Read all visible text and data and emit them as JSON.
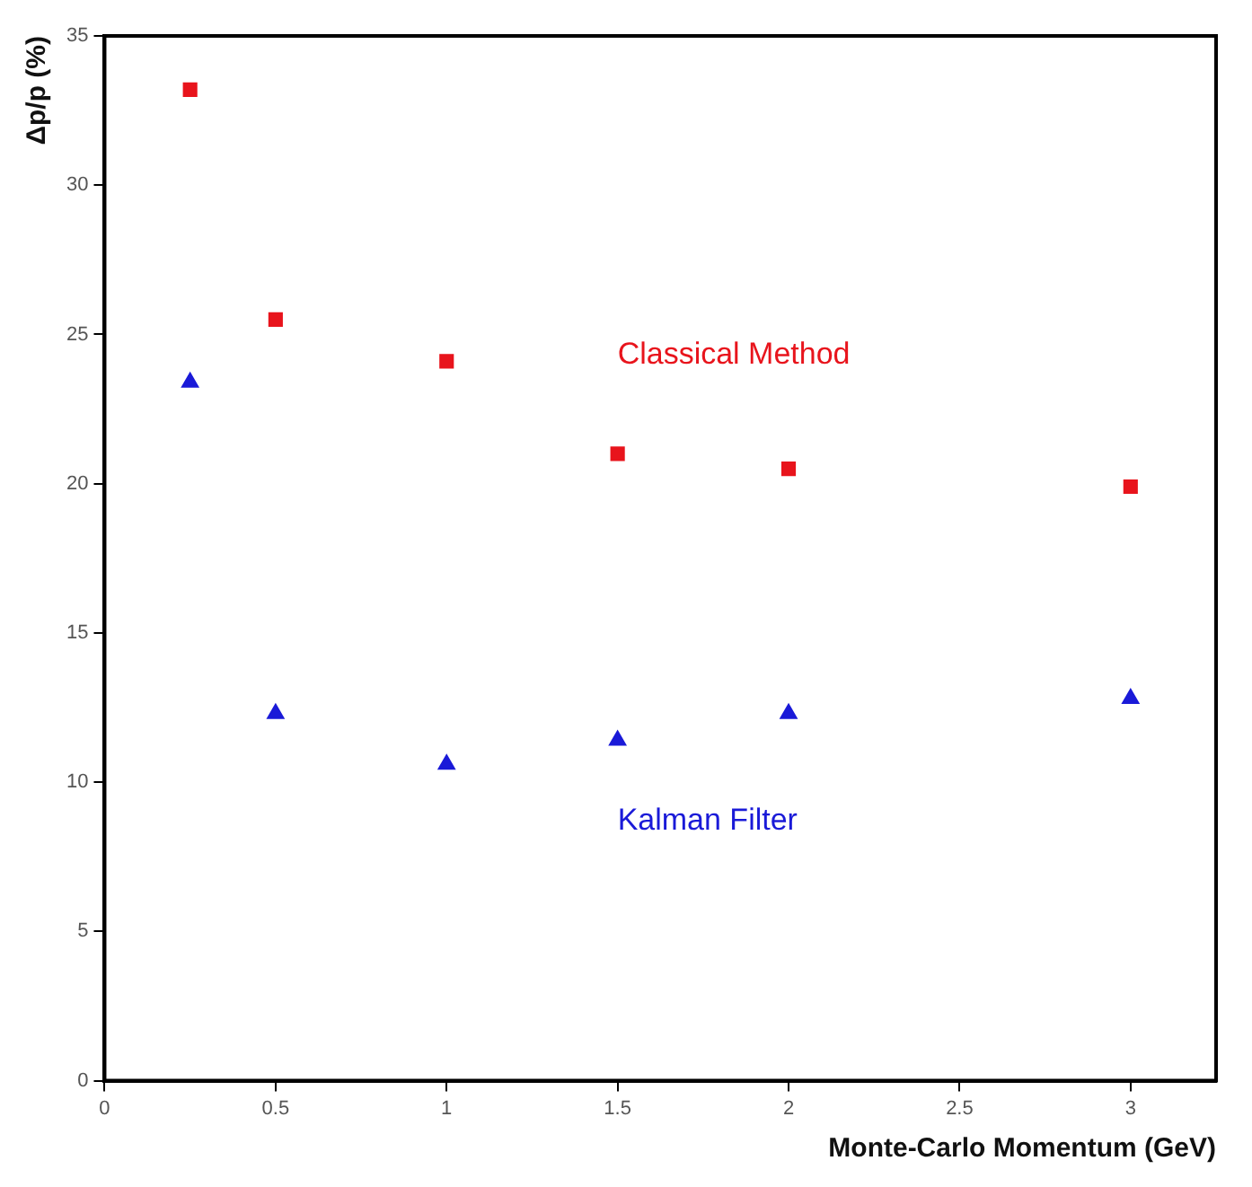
{
  "chart_data": {
    "type": "scatter",
    "xlabel": "Monte-Carlo Momentum (GeV)",
    "ylabel": "Δp/p (%)",
    "x": [
      0.25,
      0.5,
      1,
      1.5,
      2,
      3
    ],
    "series": [
      {
        "name": "Classical Method",
        "color": "#e8141c",
        "marker": "square",
        "values": [
          33.2,
          25.5,
          24.1,
          21.0,
          20.5,
          19.9
        ]
      },
      {
        "name": "Kalman Filter",
        "color": "#1a1ad8",
        "marker": "triangle",
        "values": [
          23.4,
          12.3,
          10.6,
          11.4,
          12.3,
          12.8
        ]
      }
    ],
    "xlim": [
      0,
      3.25
    ],
    "xticks": [
      0,
      0.5,
      1,
      1.5,
      2,
      2.5,
      3
    ],
    "ylim": [
      0,
      35
    ],
    "yticks": [
      0,
      5,
      10,
      15,
      20,
      25,
      30,
      35
    ],
    "grid": false,
    "legend": false
  }
}
